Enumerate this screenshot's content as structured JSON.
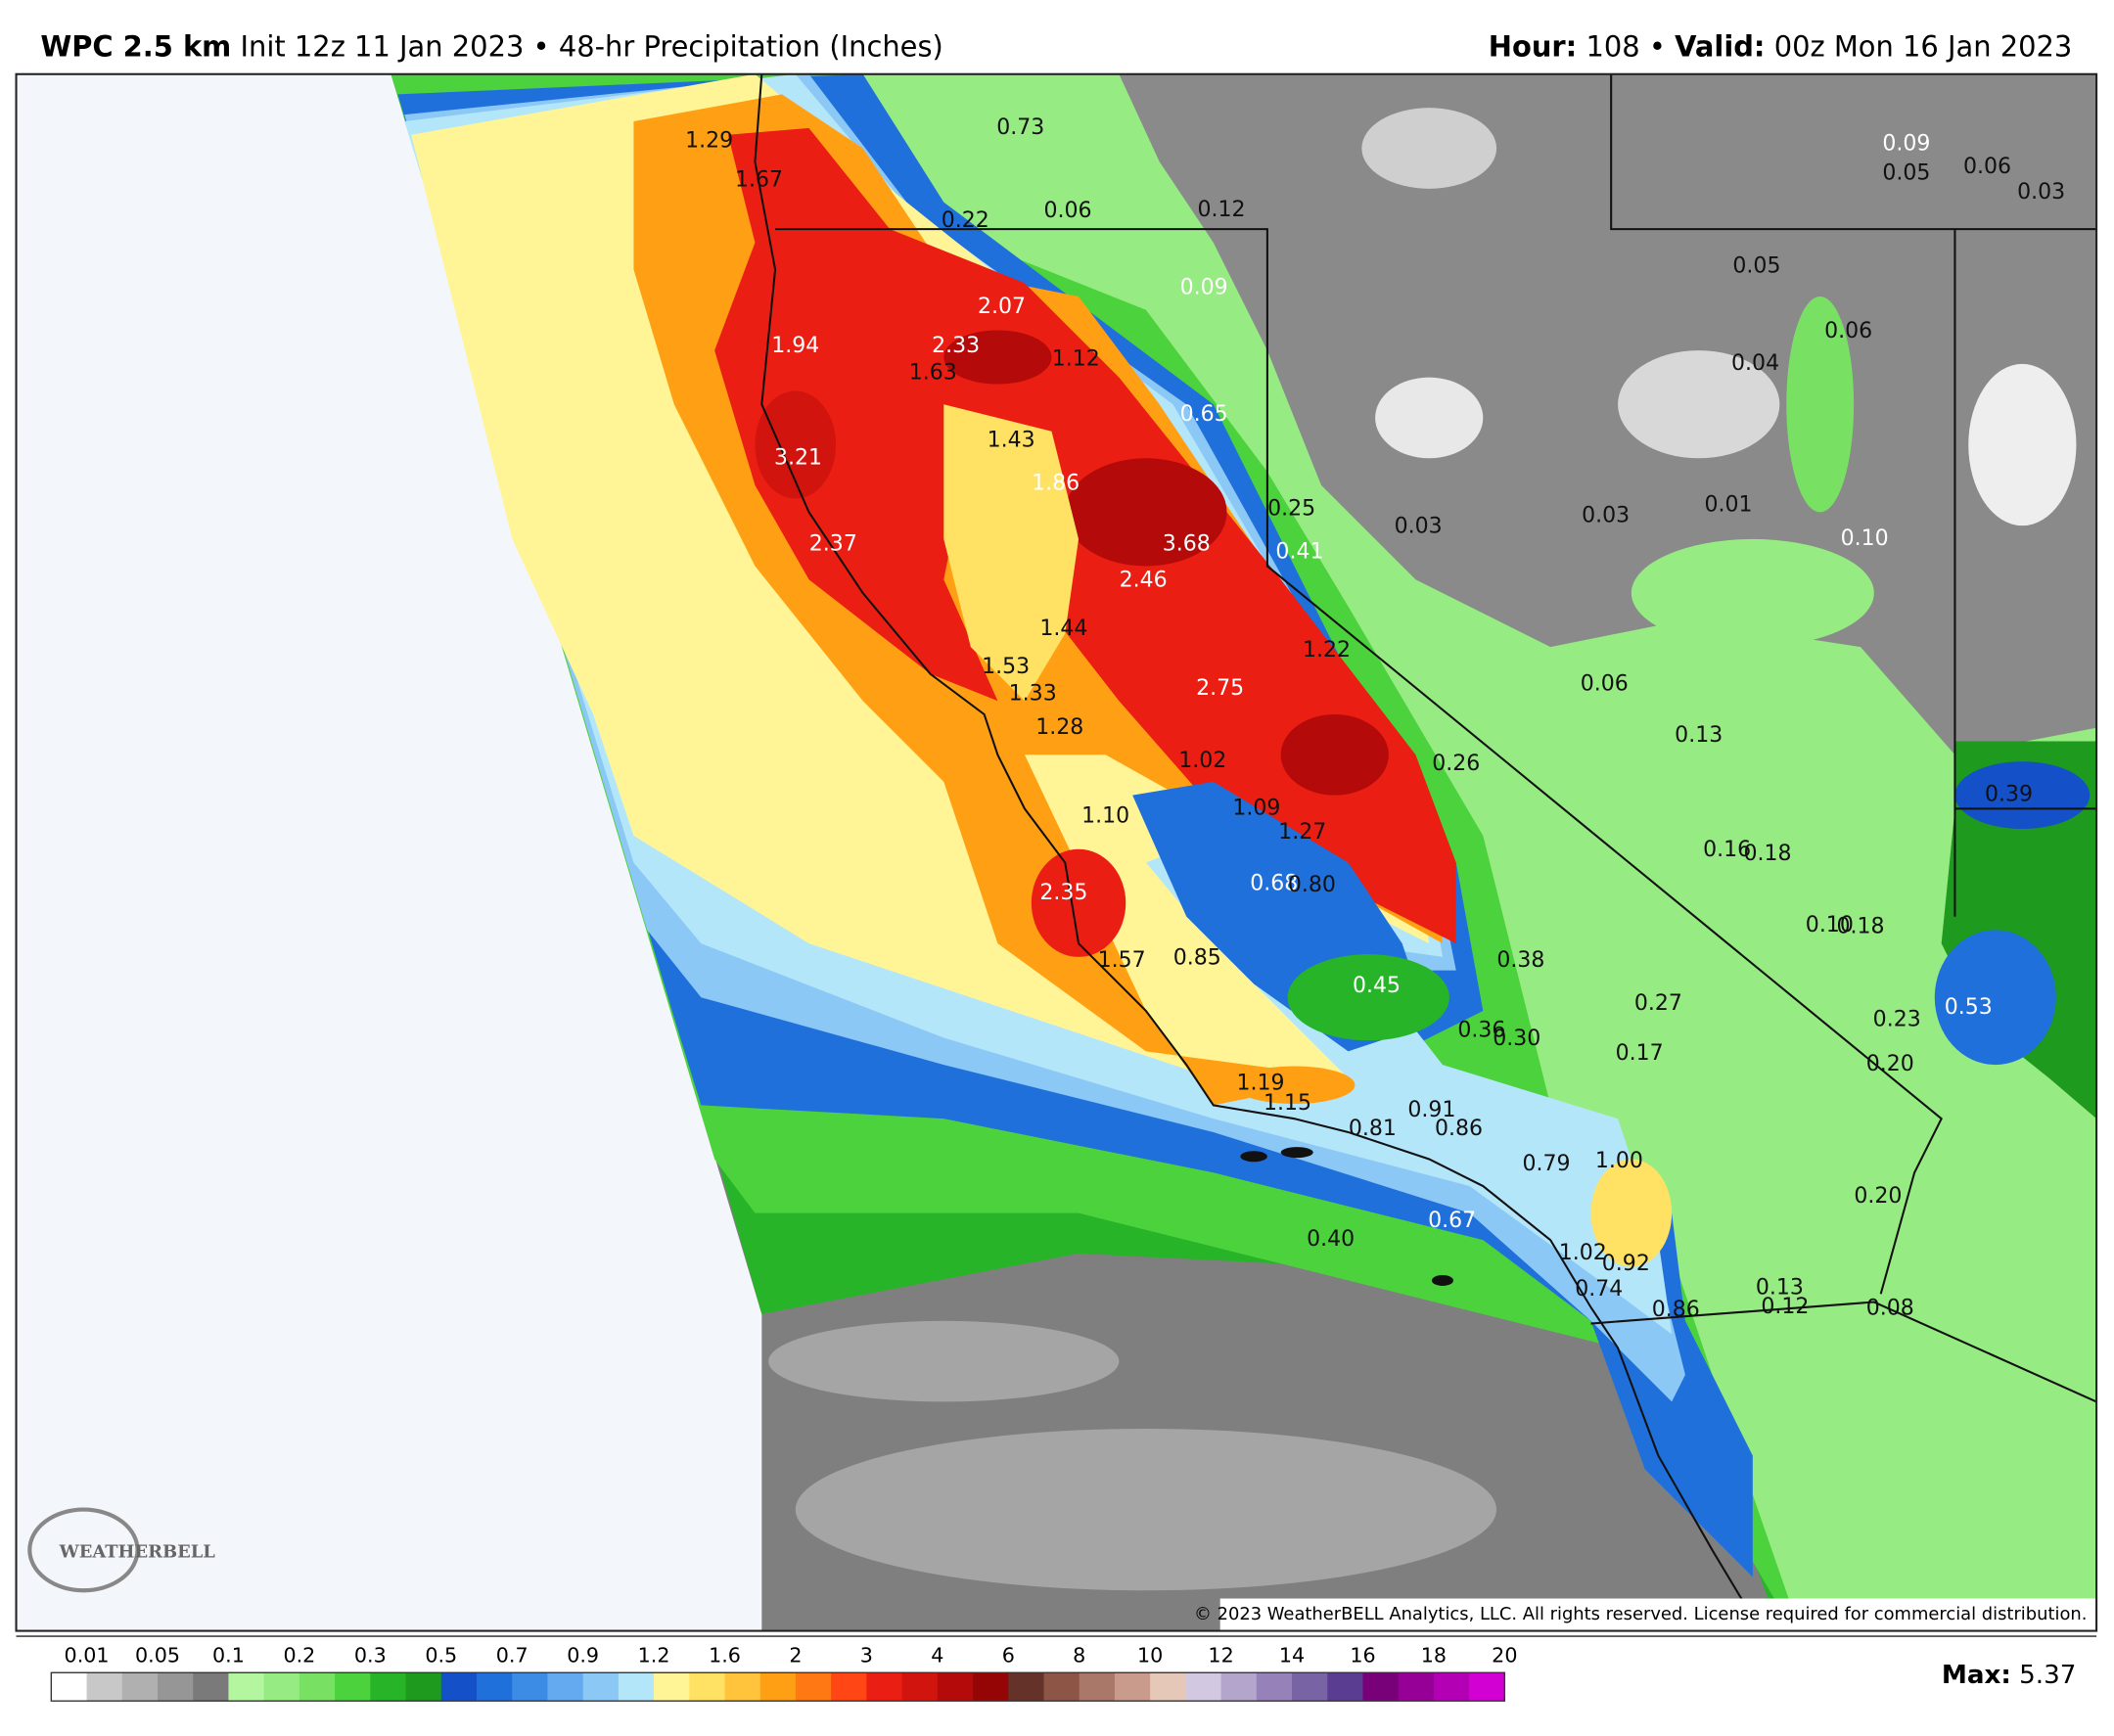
{
  "header": {
    "model": "WPC 2.5 km",
    "init": "Init 12z 11 Jan 2023",
    "separator": "•",
    "product": "48-hr Precipitation (Inches)",
    "hour_label": "Hour:",
    "hour": "108",
    "valid_label": "Valid:",
    "valid": "00z Mon 16 Jan 2023"
  },
  "map": {
    "labels": [
      "1.94",
      "3.21",
      "2.37",
      "2.07",
      "2.33",
      "1.86",
      "3.68",
      "2.46",
      "2.75",
      "2.35",
      "0.65",
      "0.41",
      "0.09",
      "0.68",
      "0.45",
      "0.67",
      "0.53",
      "0.10",
      "0.09",
      "1.29",
      "1.67",
      "0.73",
      "0.22",
      "0.06",
      "0.12",
      "1.63",
      "1.12",
      "1.43",
      "0.25",
      "1.44",
      "1.53",
      "1.33",
      "1.28",
      "1.22",
      "1.02",
      "1.09",
      "1.27",
      "1.10",
      "0.80",
      "1.57",
      "0.85",
      "0.38",
      "0.36",
      "0.30",
      "1.19",
      "1.15",
      "0.81",
      "0.91",
      "0.86",
      "0.79",
      "1.00",
      "0.40",
      "1.02",
      "0.92",
      "0.74",
      "0.86",
      "0.13",
      "0.12",
      "0.08",
      "0.26",
      "0.03",
      "0.03",
      "0.01",
      "0.06",
      "0.13",
      "0.16",
      "0.18",
      "0.10",
      "0.18",
      "0.27",
      "0.17",
      "0.23",
      "0.20",
      "0.20",
      "0.39",
      "0.05",
      "0.04",
      "0.06",
      "0.05",
      "0.06",
      "0.03"
    ],
    "copyright": "© 2023 WeatherBELL Analytics, LLC. All rights reserved. License required for commercial distribution.",
    "logo": "WEATHERBELL"
  },
  "legend": {
    "ticks": [
      0.01,
      0.05,
      0.1,
      0.2,
      0.3,
      0.5,
      0.7,
      0.9,
      1.2,
      1.6,
      2,
      3,
      4,
      6,
      8,
      10,
      12,
      14,
      16,
      18,
      20
    ],
    "colors": [
      "#ffffff",
      "#c8c8c8",
      "#b0b0b0",
      "#969696",
      "#7a7a7a",
      "#b4f5a0",
      "#96eb82",
      "#78e164",
      "#4cd23c",
      "#28b428",
      "#1e9a1e",
      "#1450c8",
      "#2070dc",
      "#3c8ce6",
      "#64aaf0",
      "#8cc8f5",
      "#b4e6fa",
      "#fff596",
      "#ffe164",
      "#ffc33c",
      "#ffa014",
      "#ff7814",
      "#ff4614",
      "#eb1e14",
      "#d2140f",
      "#b40a0a",
      "#960505",
      "#643228",
      "#8c5546",
      "#aa7868",
      "#c89b8c",
      "#e6c8b9",
      "#d2c8e1",
      "#b4a5cd",
      "#9682b9",
      "#7864a5",
      "#5a3c91",
      "#780078",
      "#960096",
      "#b400b4",
      "#d200d2"
    ],
    "max_label": "Max:",
    "max": "5.37"
  }
}
